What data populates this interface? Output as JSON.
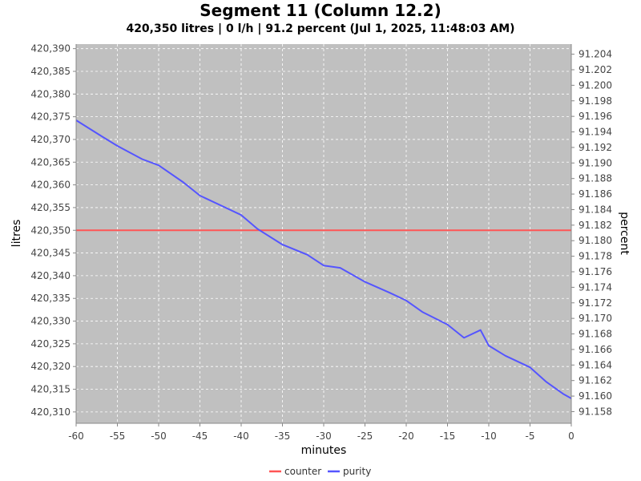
{
  "chart_data": {
    "type": "line",
    "title": "Segment 11 (Column 12.2)",
    "subtitle": "420,350 litres | 0 l/h | 91.2 percent (Jul 1, 2025, 11:48:03 AM)",
    "xlabel": "minutes",
    "ylabel_left": "litres",
    "ylabel_right": "percent",
    "xlim": [
      -60,
      0
    ],
    "ylim_left": [
      420307.5,
      420391
    ],
    "ylim_right": [
      91.1565,
      91.2053
    ],
    "x_ticks": [
      -60,
      -55,
      -50,
      -45,
      -40,
      -35,
      -30,
      -25,
      -20,
      -15,
      -10,
      -5,
      0
    ],
    "x_tick_labels": [
      "-60",
      "-55",
      "-50",
      "-45",
      "-40",
      "-35",
      "-30",
      "-25",
      "-20",
      "-15",
      "-10",
      "-5",
      "0"
    ],
    "y_left_ticks": [
      420310,
      420315,
      420320,
      420325,
      420330,
      420335,
      420340,
      420345,
      420350,
      420355,
      420360,
      420365,
      420370,
      420375,
      420380,
      420385,
      420390
    ],
    "y_left_tick_labels": [
      "420,310",
      "420,315",
      "420,320",
      "420,325",
      "420,330",
      "420,335",
      "420,340",
      "420,345",
      "420,350",
      "420,355",
      "420,360",
      "420,365",
      "420,370",
      "420,375",
      "420,380",
      "420,385",
      "420,390"
    ],
    "y_right_ticks": [
      91.158,
      91.16,
      91.162,
      91.164,
      91.166,
      91.168,
      91.17,
      91.172,
      91.174,
      91.176,
      91.178,
      91.18,
      91.182,
      91.184,
      91.186,
      91.188,
      91.19,
      91.192,
      91.194,
      91.196,
      91.198,
      91.2,
      91.202,
      91.204
    ],
    "y_right_tick_labels": [
      "91.158",
      "91.160",
      "91.162",
      "91.164",
      "91.166",
      "91.168",
      "91.170",
      "91.172",
      "91.174",
      "91.176",
      "91.178",
      "91.180",
      "91.182",
      "91.184",
      "91.186",
      "91.188",
      "91.190",
      "91.192",
      "91.194",
      "91.196",
      "91.198",
      "91.200",
      "91.202",
      "91.204"
    ],
    "grid": true,
    "legend_position": "bottom-center",
    "series": [
      {
        "name": "counter",
        "axis": "left",
        "color": "#ff5555",
        "x": [
          -60,
          0
        ],
        "values": [
          420350,
          420350
        ]
      },
      {
        "name": "purity",
        "axis": "right",
        "color": "#5555ff",
        "x": [
          -60,
          -57,
          -55,
          -52,
          -50,
          -47,
          -45,
          -42,
          -40,
          -38,
          -35,
          -32,
          -30,
          -28,
          -25,
          -22,
          -20,
          -18,
          -15,
          -13,
          -11,
          -10,
          -8,
          -5,
          -3,
          -1,
          0
        ],
        "values": [
          91.1955,
          91.1935,
          91.1922,
          91.1905,
          91.1897,
          91.1875,
          91.1858,
          91.1843,
          91.1833,
          91.1815,
          91.1795,
          91.1782,
          91.1768,
          91.1765,
          91.1747,
          91.1733,
          91.1723,
          91.1708,
          91.1692,
          91.1675,
          91.1685,
          91.1665,
          91.1652,
          91.1637,
          91.1618,
          91.1603,
          91.1597
        ]
      }
    ]
  }
}
